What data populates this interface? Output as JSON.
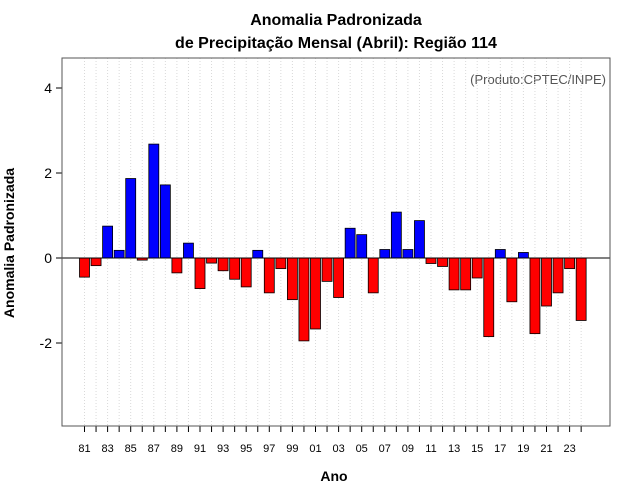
{
  "chart_data": {
    "type": "bar",
    "title_line1": "Anomalia Padronizada",
    "title_line2": "de Precipitação Mensal (Abril): Região 114",
    "xlabel": "Ano",
    "ylabel": "Anomalia Padronizada",
    "annotation": "(Produto:CPTEC/INPE)",
    "ylim": [
      -4,
      4.7
    ],
    "yticks": [
      -2,
      0,
      2,
      4
    ],
    "ytick_labels": [
      "-2",
      "0",
      "2",
      "4"
    ],
    "x_tick_labels": [
      "81",
      "83",
      "85",
      "87",
      "89",
      "91",
      "93",
      "95",
      "97",
      "99",
      "01",
      "03",
      "05",
      "07",
      "09",
      "11",
      "13",
      "15",
      "17",
      "19",
      "21",
      "23"
    ],
    "grid": "vertical dotted",
    "colors": {
      "positive": "#0000ff",
      "negative": "#ff0000",
      "frame": "#555555",
      "zero_line": "#000000",
      "grid": "#d9d9d9"
    },
    "categories": [
      "1981",
      "1982",
      "1983",
      "1984",
      "1985",
      "1986",
      "1987",
      "1988",
      "1989",
      "1990",
      "1991",
      "1992",
      "1993",
      "1994",
      "1995",
      "1996",
      "1997",
      "1998",
      "1999",
      "2000",
      "2001",
      "2002",
      "2003",
      "2004",
      "2005",
      "2006",
      "2007",
      "2008",
      "2009",
      "2010",
      "2011",
      "2012",
      "2013",
      "2014",
      "2015",
      "2016",
      "2017",
      "2018",
      "2019",
      "2020",
      "2021",
      "2022",
      "2023",
      "2024"
    ],
    "values": [
      -0.45,
      -0.18,
      0.75,
      0.18,
      1.87,
      -0.05,
      2.68,
      1.72,
      -0.35,
      0.35,
      -0.72,
      -0.12,
      -0.3,
      -0.5,
      -0.68,
      0.18,
      -0.82,
      -0.25,
      -0.98,
      -1.95,
      -1.67,
      -0.55,
      -0.93,
      0.7,
      0.55,
      -0.82,
      0.2,
      1.08,
      0.2,
      0.88,
      -0.13,
      -0.2,
      -0.75,
      -0.75,
      -0.47,
      -1.85,
      0.2,
      -1.03,
      0.13,
      -1.78,
      -1.13,
      -0.82,
      -0.25,
      -1.47
    ]
  }
}
